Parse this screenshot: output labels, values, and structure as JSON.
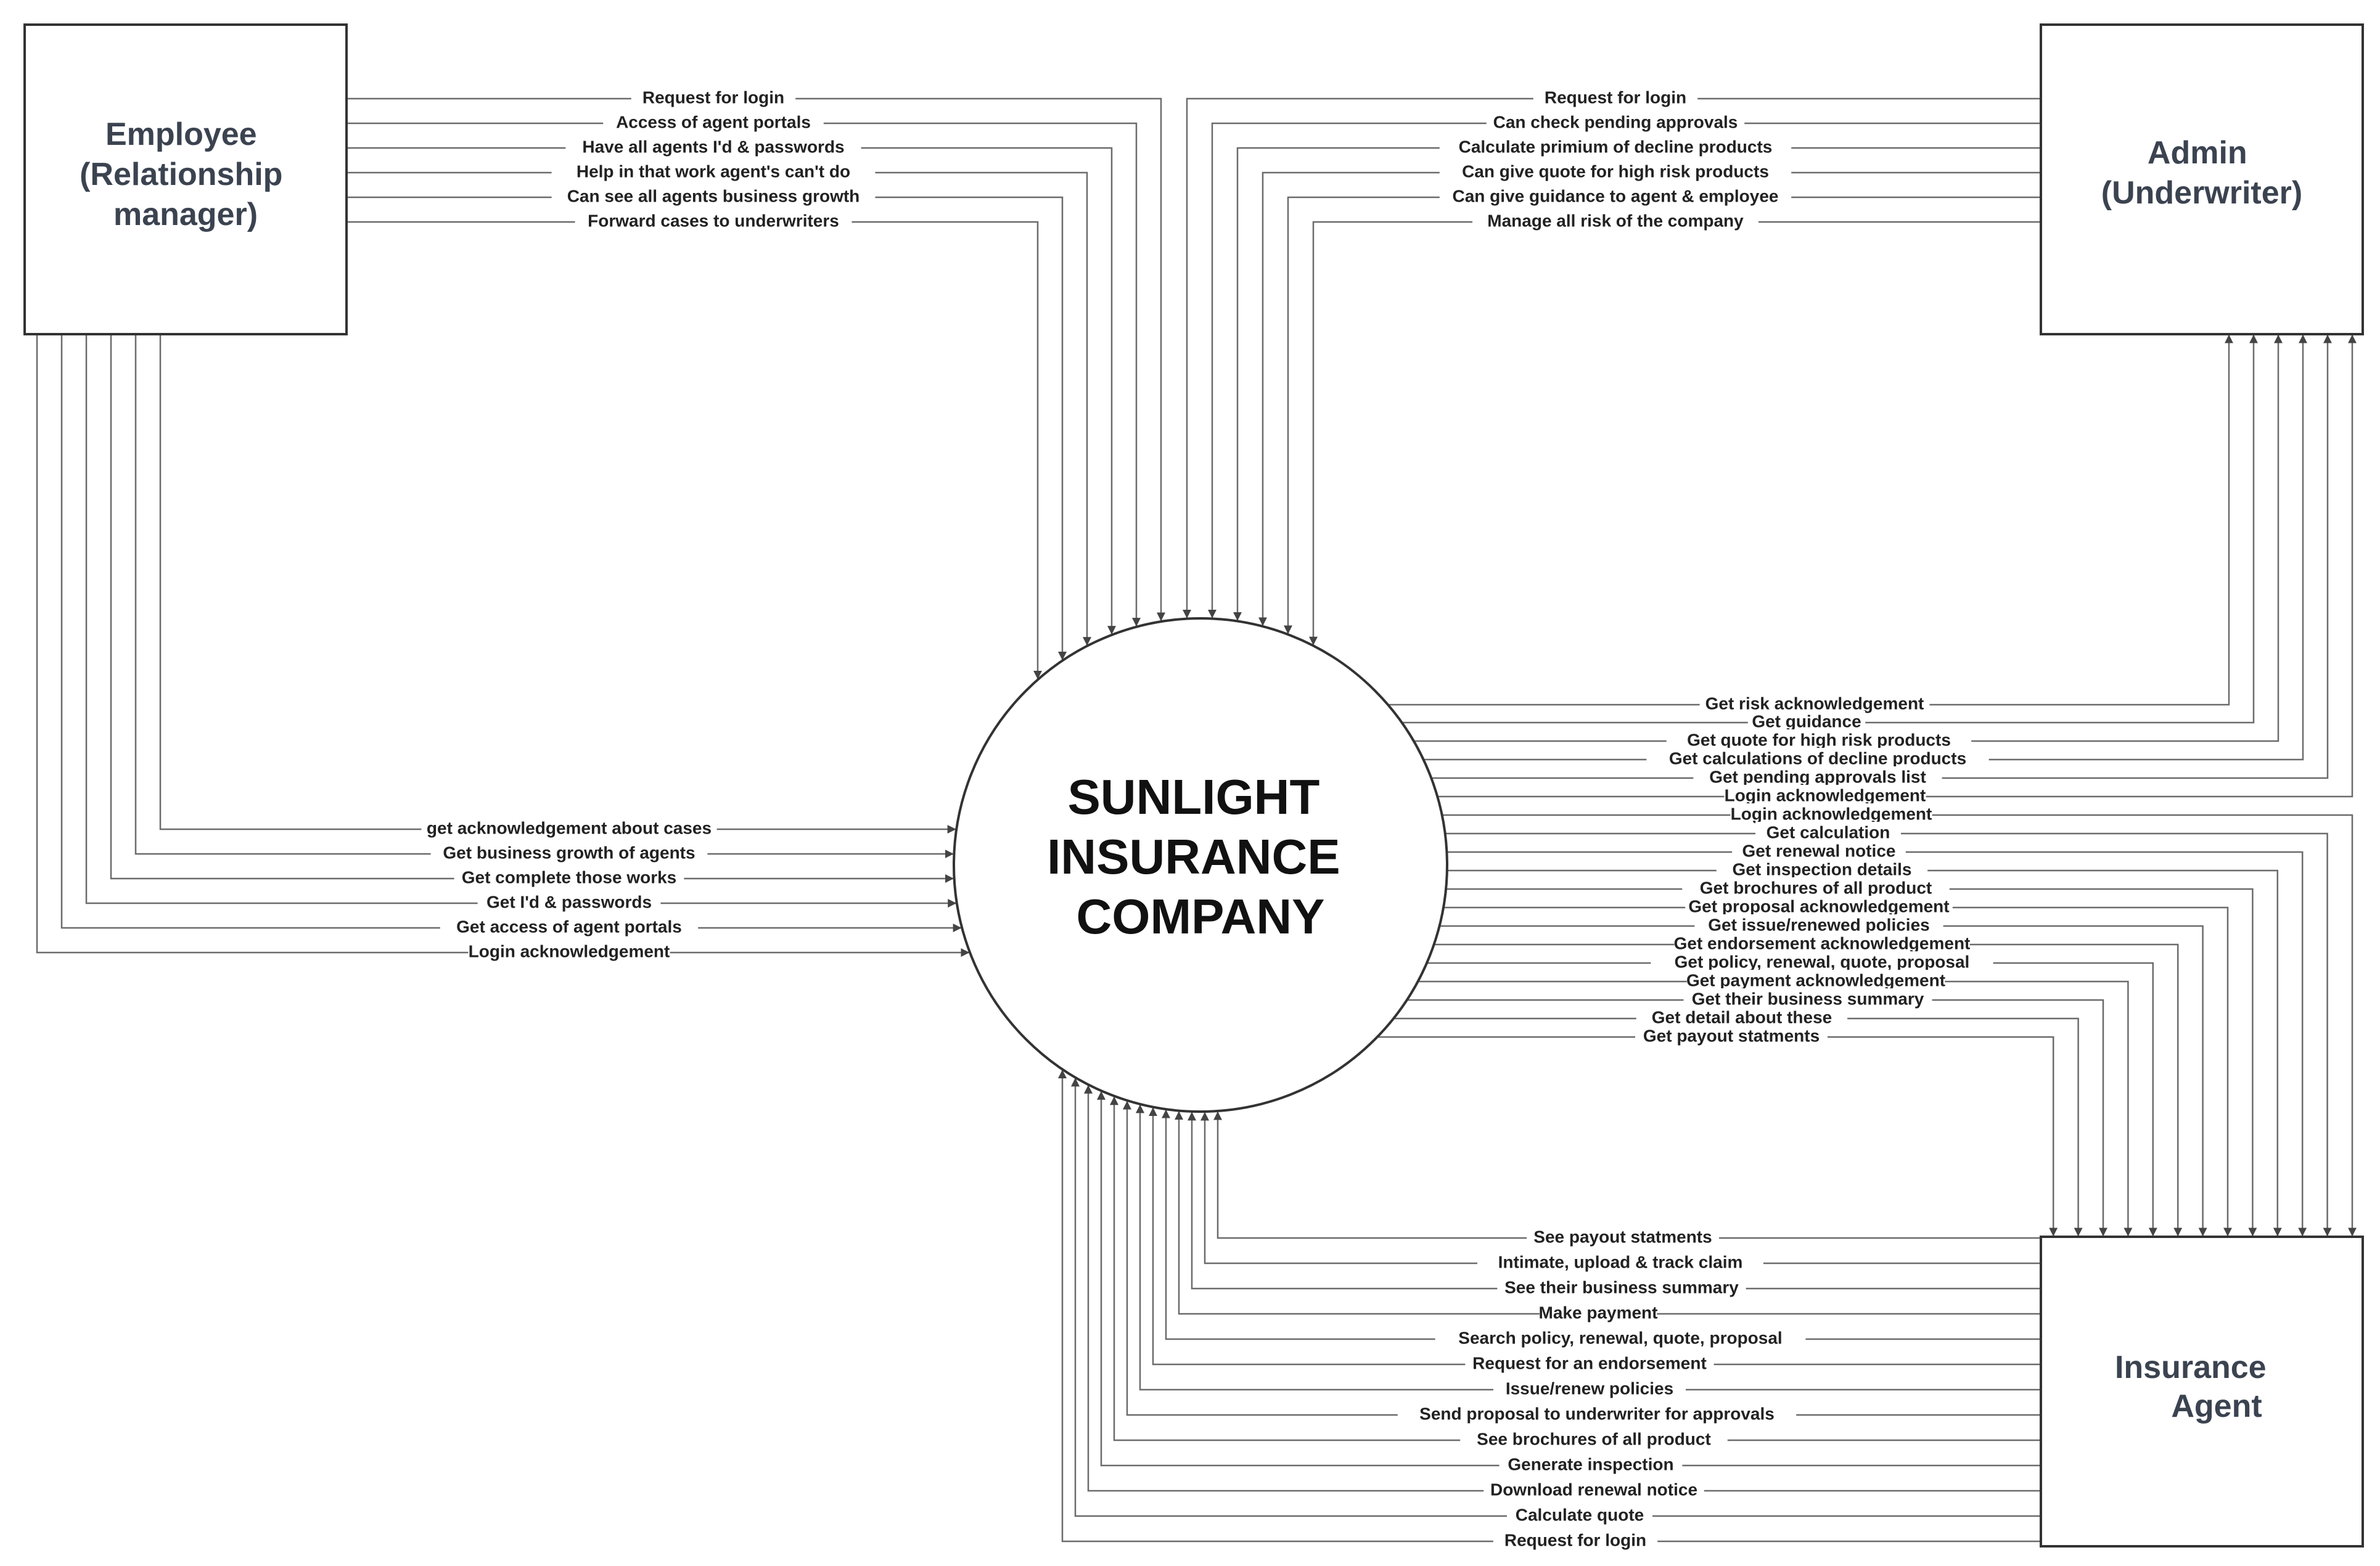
{
  "center": {
    "lines": [
      "SUNLIGHT",
      "INSURANCE",
      "COMPANY"
    ]
  },
  "entities": {
    "employee": {
      "lines": [
        "Employee",
        "(Relationship",
        "manager)"
      ]
    },
    "admin": {
      "lines": [
        "Admin",
        "(Underwriter)"
      ]
    },
    "agent": {
      "lines": [
        "Insurance",
        "Agent"
      ]
    }
  },
  "flows": {
    "employee_to_company": [
      "Request for login",
      "Access of agent portals",
      "Have all agents I'd & passwords",
      "Help in that work agent's can't do",
      "Can see all agents business growth",
      "Forward cases to underwriters"
    ],
    "company_to_employee": [
      "get acknowledgement about cases",
      "Get business growth of agents",
      "Get complete those works",
      "Get I'd & passwords",
      "Get access of agent portals",
      "Login acknowledgement"
    ],
    "admin_to_company": [
      "Request for login",
      "Can check pending approvals",
      "Calculate primium of decline products",
      "Can give quote for high risk products",
      "Can give guidance to agent & employee",
      "Manage all risk of the company"
    ],
    "company_to_admin": [
      "Get risk acknowledgement",
      "Get guidance",
      "Get quote for high risk products",
      "Get calculations of decline products",
      "Get pending approvals list",
      "Login acknowledgement"
    ],
    "company_to_agent": [
      "Login acknowledgement",
      "Get calculation",
      "Get renewal notice",
      "Get inspection details",
      "Get brochures of all product",
      "Get proposal acknowledgement",
      "Get issue/renewed policies",
      "Get endorsement acknowledgement",
      "Get policy, renewal, quote, proposal",
      "Get payment acknowledgement",
      "Get their business summary",
      "Get detail about these",
      "Get payout statments"
    ],
    "agent_to_company": [
      "See payout statments",
      "Intimate, upload & track claim",
      "See their business summary",
      "Make payment",
      "Search policy, renewal, quote, proposal",
      "Request for an endorsement",
      "Issue/renew policies",
      "Send proposal to underwriter for approvals",
      "See brochures of all product",
      "Generate inspection",
      "Download renewal notice",
      "Calculate quote",
      "Request for login"
    ]
  }
}
